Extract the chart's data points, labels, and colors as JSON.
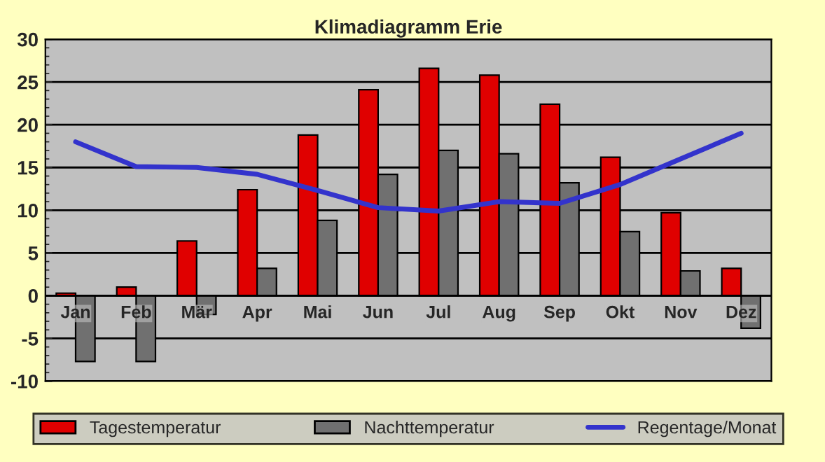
{
  "chart_data": {
    "type": "bar",
    "title": "Klimadiagramm Erie",
    "categories": [
      "Jan",
      "Feb",
      "Mär",
      "Apr",
      "Mai",
      "Jun",
      "Jul",
      "Aug",
      "Sep",
      "Okt",
      "Nov",
      "Dez"
    ],
    "series": [
      {
        "name": "Tagestemperatur",
        "color": "#e00000",
        "values": [
          0.3,
          1.0,
          6.4,
          12.4,
          18.8,
          24.1,
          26.6,
          25.8,
          22.4,
          16.2,
          9.7,
          3.2
        ]
      },
      {
        "name": "Nachttemperatur",
        "color": "#707070",
        "values": [
          -7.7,
          -7.7,
          -2.2,
          3.2,
          8.8,
          14.2,
          17.0,
          16.6,
          13.2,
          7.5,
          2.9,
          -3.8
        ]
      },
      {
        "name": "Regentage/Monat",
        "type": "line",
        "color": "#3333cc",
        "values": [
          18.0,
          15.1,
          15.0,
          14.2,
          12.3,
          10.3,
          9.9,
          11.0,
          10.8,
          13.0,
          16.0,
          19.0
        ]
      }
    ],
    "ylim": [
      -10,
      30
    ],
    "yticks": [
      -10,
      -5,
      0,
      5,
      10,
      15,
      20,
      25,
      30
    ],
    "grid": "y",
    "legend": "bottom"
  }
}
